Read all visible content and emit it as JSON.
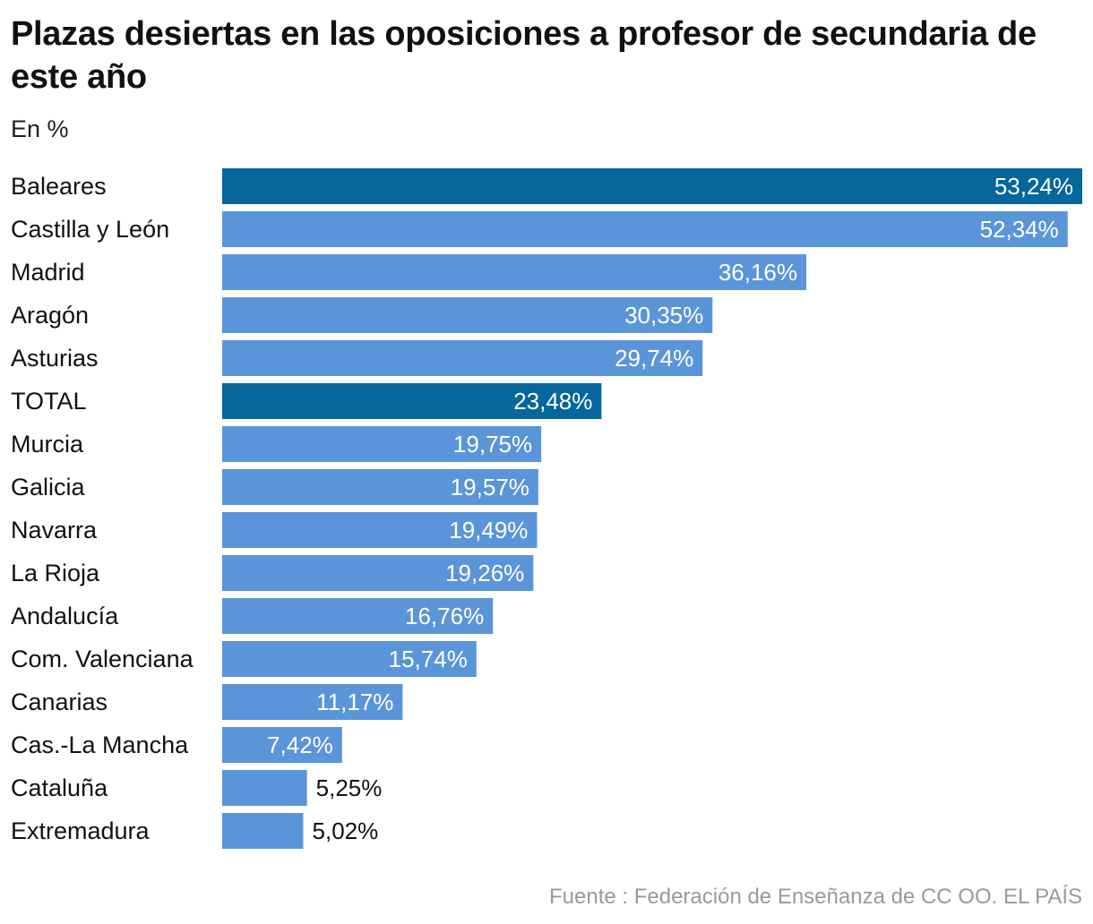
{
  "chart_data": {
    "type": "bar",
    "orientation": "horizontal",
    "title": "Plazas desiertas en las oposiciones a profesor de secundaria de este año",
    "subtitle": "En %",
    "source": "Fuente : Federación de Enseñanza de CC OO. EL PAÍS",
    "xlim": [
      0,
      53.24
    ],
    "categories": [
      "Baleares",
      "Castilla y León",
      "Madrid",
      "Aragón",
      "Asturias",
      "TOTAL",
      "Murcia",
      "Galicia",
      "Navarra",
      "La Rioja",
      "Andalucía",
      "Com. Valenciana",
      "Canarias",
      "Cas.-La Mancha",
      "Cataluña",
      "Extremadura"
    ],
    "values": [
      53.24,
      52.34,
      36.16,
      30.35,
      29.74,
      23.48,
      19.75,
      19.57,
      19.49,
      19.26,
      16.76,
      15.74,
      11.17,
      7.42,
      5.25,
      5.02
    ],
    "labels": [
      "53,24%",
      "52,34%",
      "36,16%",
      "30,35%",
      "29,74%",
      "23,48%",
      "19,75%",
      "19,57%",
      "19,49%",
      "19,26%",
      "16,76%",
      "15,74%",
      "11,17%",
      "7,42%",
      "5,25%",
      "5,02%"
    ],
    "highlighted": [
      "Baleares",
      "TOTAL"
    ]
  },
  "colors": {
    "bar": "#5b95d9",
    "highlight": "#05679b",
    "label_inside": "#ffffff",
    "label_outside": "#111111",
    "category_text": "#111111"
  }
}
